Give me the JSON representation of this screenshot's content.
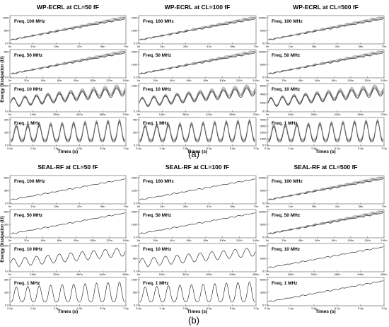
{
  "figure": {
    "a_label": "(a)",
    "b_label": "(b)"
  },
  "chart_data": [
    {
      "id": "a",
      "type": "line",
      "ylabel": "Energy Dissipation (fJ)",
      "xlabel": "Times (s)",
      "column_titles": [
        "WP-ECRL at CL=50 fF",
        "WP-ECRL at CL=100 fF",
        "WP-ECRL at CL=500 fF"
      ],
      "panels": [
        {
          "title": "WP-ECRL at CL=50 fF",
          "annotation": "Freq. 100 MHz",
          "col": 0,
          "row": 0,
          "kind": "stair",
          "series_count": 4,
          "y_ticks": [
            "0.0",
            "500",
            "1000"
          ],
          "x_ticks": [
            "0n",
            "14n",
            "28n",
            "42n",
            "56n",
            "70n"
          ],
          "ylim": [
            0,
            1000
          ]
        },
        {
          "title": "WP-ECRL at CL=100 fF",
          "annotation": "Freq. 100 MHz",
          "col": 1,
          "row": 0,
          "kind": "stair",
          "series_count": 4,
          "y_ticks": [
            "0.0",
            "1000",
            "2000"
          ],
          "x_ticks": [
            "0n",
            "14n",
            "28n",
            "42n",
            "56n",
            "70n"
          ],
          "ylim": [
            0,
            2000
          ]
        },
        {
          "title": "WP-ECRL at CL=500 fF",
          "annotation": "Freq. 100 MHz",
          "col": 2,
          "row": 0,
          "kind": "stair",
          "series_count": 4,
          "y_ticks": [
            "0.0",
            "5000",
            "10000"
          ],
          "x_ticks": [
            "0n",
            "14n",
            "28n",
            "42n",
            "56n",
            "70n"
          ],
          "ylim": [
            0,
            10000
          ]
        },
        {
          "annotation": "Freq. 50 MHz",
          "col": 0,
          "row": 1,
          "kind": "stair",
          "series_count": 4,
          "y_ticks": [
            "0.0",
            "500"
          ],
          "x_ticks": [
            "0n",
            "20n",
            "40n",
            "60n",
            "80n",
            "100n",
            "120n",
            "140n"
          ],
          "ylim": [
            0,
            700
          ]
        },
        {
          "annotation": "Freq. 50 MHz",
          "col": 1,
          "row": 1,
          "kind": "stair",
          "series_count": 4,
          "y_ticks": [
            "0.0",
            "1000",
            "2000"
          ],
          "x_ticks": [
            "0n",
            "20n",
            "40n",
            "60n",
            "80n",
            "100n",
            "120n",
            "140n"
          ],
          "ylim": [
            0,
            2000
          ]
        },
        {
          "annotation": "Freq. 50 MHz",
          "col": 2,
          "row": 1,
          "kind": "stair",
          "series_count": 4,
          "y_ticks": [
            "0.0",
            "5000",
            "10000"
          ],
          "x_ticks": [
            "0n",
            "20n",
            "40n",
            "60n",
            "80n",
            "100n",
            "120n",
            "140n"
          ],
          "ylim": [
            0,
            10000
          ]
        },
        {
          "annotation": "Freq. 10 MHz",
          "col": 0,
          "row": 2,
          "kind": "wave",
          "series_count": 4,
          "y_ticks": [
            "0.0",
            "500"
          ],
          "x_ticks": [
            "0n",
            "140n",
            "280n",
            "420n",
            "560n",
            "700n"
          ],
          "ylim": [
            0,
            700
          ]
        },
        {
          "annotation": "Freq. 10 MHz",
          "col": 1,
          "row": 2,
          "kind": "wave",
          "series_count": 4,
          "y_ticks": [
            "0.0",
            "1000"
          ],
          "x_ticks": [
            "0n",
            "140n",
            "280n",
            "420n",
            "560n",
            "700n"
          ],
          "ylim": [
            0,
            1200
          ]
        },
        {
          "annotation": "Freq. 10 MHz",
          "col": 2,
          "row": 2,
          "kind": "wave",
          "series_count": 4,
          "y_ticks": [
            "0.0",
            "2000",
            "4000",
            "6000"
          ],
          "x_ticks": [
            "0n",
            "140n",
            "280n",
            "420n",
            "560n",
            "700n"
          ],
          "ylim": [
            0,
            6000
          ]
        },
        {
          "annotation": "Freq. 1 MHz",
          "col": 0,
          "row": 3,
          "kind": "osc",
          "series_count": 4,
          "y_ticks": [
            "0.0",
            "100",
            "200"
          ],
          "x_ticks": [
            "0.0p",
            "1.4p",
            "2.8p",
            "4.2p",
            "5.6p",
            "7.0p"
          ],
          "ylim": [
            0,
            200
          ]
        },
        {
          "annotation": "Freq. 1 MHz",
          "col": 1,
          "row": 3,
          "kind": "osc",
          "series_count": 4,
          "y_ticks": [
            "0.0",
            "200",
            "400"
          ],
          "x_ticks": [
            "0.0p",
            "1.4p",
            "2.8p",
            "4.2p",
            "5.6p",
            "7.0p"
          ],
          "ylim": [
            0,
            400
          ]
        },
        {
          "annotation": "Freq. 1 MHz",
          "col": 2,
          "row": 3,
          "kind": "osc",
          "series_count": 4,
          "y_ticks": [
            "0.0",
            "1000",
            "2000",
            "3000",
            "4000"
          ],
          "x_ticks": [
            "0.0p",
            "1.4p",
            "2.8p",
            "4.2p",
            "5.6p",
            "7.0p"
          ],
          "ylim": [
            0,
            4000
          ]
        }
      ]
    },
    {
      "id": "b",
      "type": "line",
      "ylabel": "Energy Dissipation (fJ)",
      "xlabel": "Times (s)",
      "column_titles": [
        "SEAL-RF at CL=50 fF",
        "SEAL-RF at CL=100 fF",
        "SEAL-RF at CL=500 fF"
      ],
      "panels": [
        {
          "title": "SEAL-RF at CL=50 fF",
          "annotation": "Freq. 100 MHz",
          "col": 0,
          "row": 0,
          "kind": "stair",
          "series_count": 1,
          "y_ticks": [
            "0.0",
            "300",
            "600"
          ],
          "x_ticks": [
            "0n",
            "14n",
            "28n",
            "42n",
            "56n",
            "70n"
          ],
          "ylim": [
            0,
            600
          ]
        },
        {
          "title": "SEAL-RF at CL=100 fF",
          "annotation": "Freq. 100 MHz",
          "col": 1,
          "row": 0,
          "kind": "stair",
          "series_count": 1,
          "y_ticks": [
            "0.0",
            "1100",
            "2200"
          ],
          "x_ticks": [
            "0n",
            "14n",
            "28n",
            "42n",
            "56n",
            "70n"
          ],
          "ylim": [
            0,
            2200
          ]
        },
        {
          "title": "SEAL-RF at CL=500 fF",
          "annotation": "Freq. 100 MHz",
          "col": 2,
          "row": 0,
          "kind": "stair",
          "series_count": 4,
          "y_ticks": [
            "0.0",
            "5000",
            "10000"
          ],
          "x_ticks": [
            "0n",
            "14n",
            "28n",
            "42n",
            "56n",
            "70n"
          ],
          "ylim": [
            0,
            10000
          ]
        },
        {
          "annotation": "Freq. 50 MHz",
          "col": 0,
          "row": 1,
          "kind": "stair",
          "series_count": 1,
          "y_ticks": [
            "0.0",
            "300",
            "600"
          ],
          "x_ticks": [
            "0n",
            "20n",
            "40n",
            "60n",
            "80n",
            "100n",
            "120n",
            "140n"
          ],
          "ylim": [
            0,
            600
          ]
        },
        {
          "annotation": "Freq. 50 MHz",
          "col": 1,
          "row": 1,
          "kind": "stair",
          "series_count": 1,
          "y_ticks": [
            "0.0",
            "1000",
            "2000"
          ],
          "x_ticks": [
            "0n",
            "20n",
            "40n",
            "60n",
            "80n",
            "100n",
            "120n",
            "140n"
          ],
          "ylim": [
            0,
            2000
          ]
        },
        {
          "annotation": "Freq. 50 MHz",
          "col": 2,
          "row": 1,
          "kind": "stair",
          "series_count": 4,
          "y_ticks": [
            "0.0",
            "5000",
            "10000"
          ],
          "x_ticks": [
            "0n",
            "20n",
            "40n",
            "60n",
            "80n",
            "100n",
            "120n",
            "140n"
          ],
          "ylim": [
            0,
            10000
          ]
        },
        {
          "annotation": "Freq. 10 MHz",
          "col": 0,
          "row": 2,
          "kind": "wave",
          "series_count": 1,
          "y_ticks": [
            "0.0",
            "240"
          ],
          "x_ticks": [
            "0n",
            "160n",
            "320n",
            "480n",
            "640n",
            "800n"
          ],
          "ylim": [
            0,
            300
          ]
        },
        {
          "annotation": "Freq. 10 MHz",
          "col": 1,
          "row": 2,
          "kind": "wave",
          "series_count": 1,
          "y_ticks": [
            "0.0",
            "600",
            "1200"
          ],
          "x_ticks": [
            "0n",
            "160n",
            "320n",
            "480n",
            "640n",
            "800n"
          ],
          "ylim": [
            0,
            1200
          ]
        },
        {
          "annotation": "Freq. 10 MHz",
          "col": 2,
          "row": 2,
          "kind": "stair",
          "series_count": 1,
          "y_ticks": [
            "0.0",
            "5000",
            "10000"
          ],
          "x_ticks": [
            "0n",
            "160n",
            "320n",
            "480n",
            "640n",
            "800n"
          ],
          "ylim": [
            0,
            10000
          ]
        },
        {
          "annotation": "Freq. 1 MHz",
          "col": 0,
          "row": 3,
          "kind": "osc",
          "series_count": 1,
          "y_ticks": [
            "0.0",
            "150",
            "300"
          ],
          "x_ticks": [
            "0.0p",
            "1.4p",
            "2.8p",
            "4.2p",
            "5.6p",
            "7.0p"
          ],
          "ylim": [
            0,
            300
          ]
        },
        {
          "annotation": "Freq. 1 MHz",
          "col": 1,
          "row": 3,
          "kind": "osc",
          "series_count": 1,
          "y_ticks": [
            "0.0",
            "500",
            "1000"
          ],
          "x_ticks": [
            "0.0p",
            "1.4p",
            "2.8p",
            "4.2p",
            "5.6p",
            "7.0p"
          ],
          "ylim": [
            0,
            1000
          ]
        },
        {
          "annotation": "Freq. 1 MHz",
          "col": 2,
          "row": 3,
          "kind": "stair",
          "series_count": 1,
          "y_ticks": [
            "0.0",
            "3000",
            "6000"
          ],
          "x_ticks": [
            "0.0p",
            "1.4p",
            "2.8p",
            "4.2p",
            "5.6p",
            "7.0p"
          ],
          "ylim": [
            0,
            6000
          ]
        }
      ]
    }
  ]
}
